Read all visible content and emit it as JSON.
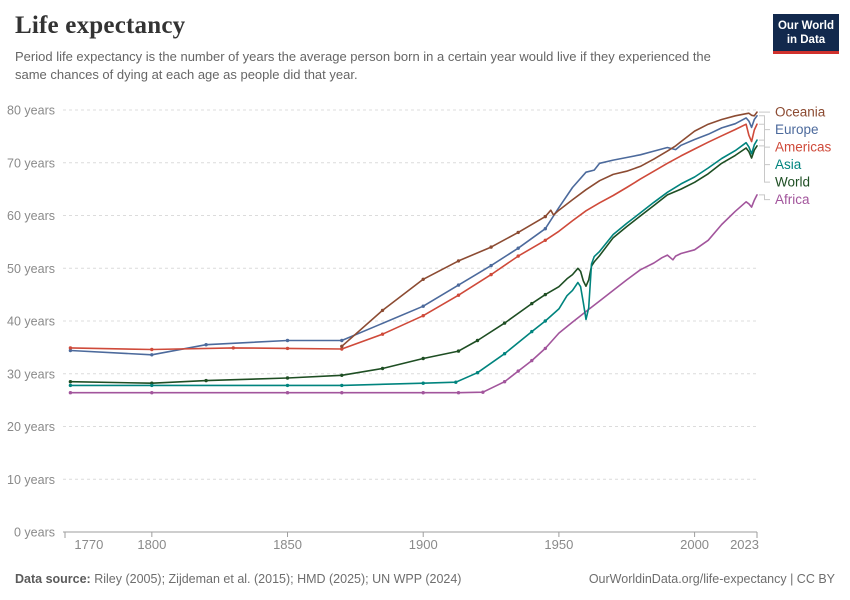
{
  "header": {
    "title": "Life expectancy",
    "subtitle": "Period life expectancy is the number of years the average person born in a certain year would live if they experienced the same chances of dying at each age as people did that year."
  },
  "logo": {
    "line1": "Our World",
    "line2": "in Data",
    "bg": "#12294d",
    "accent": "#d0312d"
  },
  "chart_data": {
    "type": "line",
    "title": "Life expectancy",
    "xlabel": "",
    "ylabel": "years",
    "xlim": [
      1768,
      2023
    ],
    "ylim": [
      0,
      80
    ],
    "x_ticks": [
      1770,
      1800,
      1850,
      1900,
      1950,
      2000,
      2023
    ],
    "y_ticks": [
      0,
      10,
      20,
      30,
      40,
      50,
      60,
      70,
      80
    ],
    "y_tick_suffix": " years",
    "grid": "dashed-horizontal",
    "legend_position": "right-of-line-ends",
    "series": [
      {
        "name": "Oceania",
        "color": "#8c4b32",
        "points": [
          [
            1870,
            35.2
          ],
          [
            1885,
            42
          ],
          [
            1900,
            47.9
          ],
          [
            1913,
            51.4
          ],
          [
            1925,
            54
          ],
          [
            1935,
            56.8
          ],
          [
            1945,
            59.8
          ],
          [
            1947,
            61
          ],
          [
            1948,
            60.1
          ],
          [
            1950,
            61
          ],
          [
            1955,
            63
          ],
          [
            1960,
            64.9
          ],
          [
            1965,
            66.6
          ],
          [
            1970,
            67.8
          ],
          [
            1975,
            68.4
          ],
          [
            1980,
            69.3
          ],
          [
            1985,
            70.7
          ],
          [
            1990,
            72.2
          ],
          [
            1993,
            73.2
          ],
          [
            1995,
            74
          ],
          [
            2000,
            76
          ],
          [
            2005,
            77.3
          ],
          [
            2010,
            78.2
          ],
          [
            2015,
            78.9
          ],
          [
            2019,
            79.3
          ],
          [
            2020,
            79.4
          ],
          [
            2021,
            79
          ],
          [
            2022,
            78.9
          ],
          [
            2023,
            79.6
          ]
        ]
      },
      {
        "name": "Europe",
        "color": "#4c6a9c",
        "points": [
          [
            1770,
            34.4
          ],
          [
            1800,
            33.6
          ],
          [
            1820,
            35.5
          ],
          [
            1850,
            36.3
          ],
          [
            1870,
            36.3
          ],
          [
            1900,
            42.8
          ],
          [
            1913,
            46.8
          ],
          [
            1925,
            50.5
          ],
          [
            1935,
            53.8
          ],
          [
            1945,
            57.5
          ],
          [
            1950,
            61.5
          ],
          [
            1955,
            65.3
          ],
          [
            1960,
            68.2
          ],
          [
            1963,
            68.6
          ],
          [
            1965,
            69.9
          ],
          [
            1970,
            70.5
          ],
          [
            1975,
            71
          ],
          [
            1980,
            71.5
          ],
          [
            1985,
            72.2
          ],
          [
            1990,
            72.9
          ],
          [
            1993,
            72.5
          ],
          [
            1995,
            73.3
          ],
          [
            2000,
            74.4
          ],
          [
            2005,
            75.4
          ],
          [
            2010,
            76.6
          ],
          [
            2015,
            77.4
          ],
          [
            2019,
            78.5
          ],
          [
            2020,
            77.9
          ],
          [
            2021,
            76.7
          ],
          [
            2022,
            78.2
          ],
          [
            2023,
            78.9
          ]
        ]
      },
      {
        "name": "Americas",
        "color": "#cf4a3a",
        "points": [
          [
            1770,
            34.9
          ],
          [
            1800,
            34.6
          ],
          [
            1830,
            34.9
          ],
          [
            1850,
            34.8
          ],
          [
            1870,
            34.7
          ],
          [
            1885,
            37.5
          ],
          [
            1900,
            41
          ],
          [
            1913,
            44.9
          ],
          [
            1925,
            48.8
          ],
          [
            1935,
            52.3
          ],
          [
            1945,
            55.3
          ],
          [
            1950,
            57
          ],
          [
            1955,
            59
          ],
          [
            1960,
            60.9
          ],
          [
            1965,
            62.4
          ],
          [
            1970,
            63.8
          ],
          [
            1975,
            65.3
          ],
          [
            1980,
            66.9
          ],
          [
            1985,
            68.4
          ],
          [
            1990,
            69.9
          ],
          [
            1995,
            71.3
          ],
          [
            2000,
            72.6
          ],
          [
            2005,
            73.9
          ],
          [
            2010,
            75.1
          ],
          [
            2015,
            76.3
          ],
          [
            2019,
            77.3
          ],
          [
            2020,
            75.2
          ],
          [
            2021,
            74
          ],
          [
            2022,
            76.2
          ],
          [
            2023,
            77.3
          ]
        ]
      },
      {
        "name": "Asia",
        "color": "#00847e",
        "points": [
          [
            1770,
            27.8
          ],
          [
            1800,
            27.8
          ],
          [
            1850,
            27.8
          ],
          [
            1870,
            27.8
          ],
          [
            1900,
            28.2
          ],
          [
            1912,
            28.4
          ],
          [
            1920,
            30.2
          ],
          [
            1930,
            33.8
          ],
          [
            1940,
            38
          ],
          [
            1945,
            40
          ],
          [
            1950,
            42.3
          ],
          [
            1953,
            44.8
          ],
          [
            1955,
            45.8
          ],
          [
            1957,
            47.3
          ],
          [
            1958,
            46.5
          ],
          [
            1959,
            43.5
          ],
          [
            1960,
            40.3
          ],
          [
            1961,
            42.5
          ],
          [
            1962,
            50.8
          ],
          [
            1963,
            52.2
          ],
          [
            1965,
            53.2
          ],
          [
            1970,
            56.4
          ],
          [
            1975,
            58.5
          ],
          [
            1980,
            60.5
          ],
          [
            1985,
            62.5
          ],
          [
            1990,
            64.4
          ],
          [
            1995,
            66
          ],
          [
            2000,
            67.3
          ],
          [
            2005,
            69
          ],
          [
            2010,
            70.8
          ],
          [
            2015,
            72.3
          ],
          [
            2019,
            73.8
          ],
          [
            2020,
            73
          ],
          [
            2021,
            71.7
          ],
          [
            2022,
            73.4
          ],
          [
            2023,
            74.3
          ]
        ]
      },
      {
        "name": "World",
        "color": "#1e4e23",
        "points": [
          [
            1770,
            28.5
          ],
          [
            1800,
            28.2
          ],
          [
            1820,
            28.7
          ],
          [
            1850,
            29.2
          ],
          [
            1870,
            29.7
          ],
          [
            1885,
            31
          ],
          [
            1900,
            32.9
          ],
          [
            1913,
            34.3
          ],
          [
            1920,
            36.3
          ],
          [
            1930,
            39.6
          ],
          [
            1940,
            43.3
          ],
          [
            1945,
            45
          ],
          [
            1950,
            46.5
          ],
          [
            1953,
            48
          ],
          [
            1955,
            48.8
          ],
          [
            1957,
            50
          ],
          [
            1958,
            49.4
          ],
          [
            1959,
            47.6
          ],
          [
            1960,
            46.6
          ],
          [
            1961,
            47.8
          ],
          [
            1962,
            50.4
          ],
          [
            1963,
            51.2
          ],
          [
            1965,
            52.4
          ],
          [
            1970,
            55.8
          ],
          [
            1975,
            57.9
          ],
          [
            1980,
            59.9
          ],
          [
            1985,
            61.9
          ],
          [
            1990,
            63.9
          ],
          [
            1995,
            65
          ],
          [
            2000,
            66.3
          ],
          [
            2005,
            67.9
          ],
          [
            2010,
            69.9
          ],
          [
            2015,
            71.4
          ],
          [
            2019,
            72.8
          ],
          [
            2020,
            72.1
          ],
          [
            2021,
            70.9
          ],
          [
            2022,
            72.4
          ],
          [
            2023,
            73.2
          ]
        ]
      },
      {
        "name": "Africa",
        "color": "#a2559c",
        "points": [
          [
            1770,
            26.4
          ],
          [
            1800,
            26.4
          ],
          [
            1850,
            26.4
          ],
          [
            1870,
            26.4
          ],
          [
            1900,
            26.4
          ],
          [
            1913,
            26.4
          ],
          [
            1922,
            26.5
          ],
          [
            1930,
            28.5
          ],
          [
            1935,
            30.5
          ],
          [
            1940,
            32.5
          ],
          [
            1945,
            34.8
          ],
          [
            1950,
            37.7
          ],
          [
            1955,
            39.8
          ],
          [
            1960,
            41.8
          ],
          [
            1965,
            43.8
          ],
          [
            1970,
            45.8
          ],
          [
            1975,
            47.8
          ],
          [
            1980,
            49.7
          ],
          [
            1985,
            51
          ],
          [
            1988,
            52
          ],
          [
            1990,
            52.5
          ],
          [
            1992,
            51.6
          ],
          [
            1993,
            52.3
          ],
          [
            1995,
            52.8
          ],
          [
            2000,
            53.5
          ],
          [
            2005,
            55.3
          ],
          [
            2010,
            58.3
          ],
          [
            2015,
            60.8
          ],
          [
            2019,
            62.6
          ],
          [
            2020,
            62.2
          ],
          [
            2021,
            61.6
          ],
          [
            2022,
            62.9
          ],
          [
            2023,
            63.9
          ]
        ]
      }
    ]
  },
  "footer": {
    "sources_label": "Data source:",
    "sources": " Riley (2005); Zijdeman et al. (2015); HMD (2025); UN WPP (2024)",
    "link": "OurWorldinData.org/life-expectancy | CC BY"
  }
}
